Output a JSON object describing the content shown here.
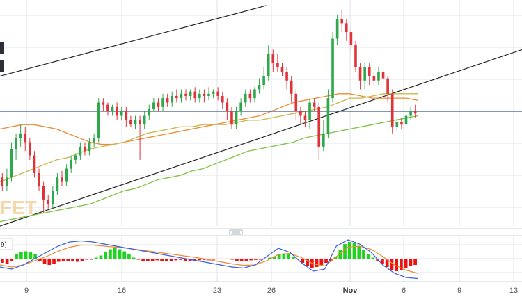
{
  "chart_data": {
    "type": "candlestick",
    "x_tick_labels": [
      "9",
      "16",
      "23",
      "26",
      "Nov",
      "6",
      "9",
      "13"
    ],
    "price_panel": {
      "ylim": [
        0,
        100
      ],
      "horizontal_line": 52,
      "candles": [
        [
          22,
          18,
          24,
          16
        ],
        [
          18,
          22,
          26,
          16
        ],
        [
          22,
          35,
          38,
          20
        ],
        [
          35,
          40,
          42,
          30
        ],
        [
          40,
          42,
          46,
          36
        ],
        [
          42,
          38,
          45,
          34
        ],
        [
          38,
          32,
          40,
          30
        ],
        [
          32,
          24,
          34,
          22
        ],
        [
          24,
          18,
          26,
          16
        ],
        [
          18,
          12,
          20,
          6
        ],
        [
          12,
          10,
          14,
          8
        ],
        [
          10,
          16,
          18,
          8
        ],
        [
          16,
          22,
          24,
          14
        ],
        [
          22,
          20,
          25,
          18
        ],
        [
          20,
          26,
          28,
          18
        ],
        [
          26,
          30,
          32,
          24
        ],
        [
          30,
          32,
          33,
          28
        ],
        [
          32,
          36,
          38,
          30
        ],
        [
          36,
          34,
          38,
          32
        ],
        [
          34,
          38,
          40,
          32
        ],
        [
          38,
          40,
          42,
          36
        ],
        [
          40,
          56,
          58,
          38
        ],
        [
          56,
          55,
          58,
          52
        ],
        [
          55,
          52,
          56,
          50
        ],
        [
          52,
          54,
          55,
          50
        ],
        [
          54,
          50,
          56,
          48
        ],
        [
          50,
          52,
          54,
          48
        ],
        [
          52,
          48,
          54,
          45
        ],
        [
          48,
          46,
          50,
          45
        ],
        [
          46,
          48,
          50,
          44
        ],
        [
          48,
          46,
          50,
          30
        ],
        [
          46,
          50,
          52,
          44
        ],
        [
          50,
          53,
          55,
          48
        ],
        [
          53,
          56,
          58,
          52
        ],
        [
          56,
          54,
          58,
          52
        ],
        [
          54,
          58,
          60,
          52
        ],
        [
          58,
          56,
          60,
          54
        ],
        [
          56,
          59,
          61,
          54
        ],
        [
          59,
          58,
          62,
          56
        ],
        [
          58,
          60,
          62,
          56
        ],
        [
          60,
          59,
          62,
          57
        ],
        [
          59,
          61,
          62,
          57
        ],
        [
          61,
          58,
          63,
          56
        ],
        [
          58,
          60,
          62,
          56
        ],
        [
          60,
          59,
          62,
          56
        ],
        [
          59,
          60,
          63,
          57
        ],
        [
          60,
          61,
          62,
          58
        ],
        [
          61,
          59,
          63,
          57
        ],
        [
          59,
          56,
          61,
          53
        ],
        [
          56,
          52,
          58,
          48
        ],
        [
          52,
          46,
          54,
          44
        ],
        [
          46,
          52,
          54,
          44
        ],
        [
          52,
          56,
          58,
          50
        ],
        [
          56,
          60,
          62,
          54
        ],
        [
          60,
          58,
          62,
          56
        ],
        [
          58,
          62,
          63,
          56
        ],
        [
          62,
          64,
          67,
          60
        ],
        [
          64,
          68,
          72,
          62
        ],
        [
          68,
          78,
          82,
          66
        ],
        [
          78,
          74,
          80,
          70
        ],
        [
          74,
          72,
          78,
          70
        ],
        [
          72,
          70,
          74,
          68
        ],
        [
          70,
          66,
          72,
          62
        ],
        [
          66,
          60,
          68,
          56
        ],
        [
          60,
          52,
          62,
          48
        ],
        [
          52,
          50,
          54,
          46
        ],
        [
          50,
          48,
          52,
          45
        ],
        [
          48,
          56,
          58,
          44
        ],
        [
          56,
          54,
          58,
          52
        ],
        [
          54,
          36,
          56,
          30
        ],
        [
          36,
          42,
          48,
          34
        ],
        [
          42,
          58,
          62,
          40
        ],
        [
          58,
          85,
          88,
          56
        ],
        [
          85,
          94,
          96,
          82
        ],
        [
          94,
          92,
          98,
          88
        ],
        [
          92,
          88,
          94,
          84
        ],
        [
          88,
          82,
          90,
          78
        ],
        [
          82,
          72,
          84,
          70
        ],
        [
          72,
          66,
          74,
          62
        ],
        [
          66,
          72,
          74,
          62
        ],
        [
          72,
          68,
          74,
          64
        ],
        [
          68,
          66,
          70,
          64
        ],
        [
          66,
          70,
          72,
          64
        ],
        [
          70,
          67,
          72,
          64
        ],
        [
          67,
          60,
          68,
          56
        ],
        [
          60,
          45,
          62,
          42
        ],
        [
          45,
          47,
          49,
          43
        ],
        [
          47,
          46,
          49,
          44
        ],
        [
          46,
          50,
          53,
          45
        ],
        [
          50,
          52,
          54,
          48
        ],
        [
          52,
          51,
          55,
          49
        ]
      ],
      "moving_averages": [
        {
          "color": "#f08a33",
          "values": [
            44,
            45,
            46,
            46,
            45,
            44,
            42,
            40,
            38,
            37,
            37,
            38,
            39,
            40,
            41,
            42,
            43,
            44,
            45,
            46,
            47,
            48,
            49,
            50,
            52,
            54,
            56,
            57,
            58,
            59,
            60,
            60,
            59,
            58,
            58,
            58,
            58,
            57
          ]
        },
        {
          "color": "#c9b84a",
          "values": [
            20,
            22,
            24,
            26,
            28,
            30,
            31,
            33,
            35,
            36,
            37,
            38,
            40,
            42,
            43,
            44,
            45,
            45,
            46,
            46,
            46,
            47,
            48,
            48,
            49,
            50,
            51,
            52,
            53,
            54,
            56,
            58,
            58,
            59,
            60,
            60,
            60,
            60
          ]
        },
        {
          "color": "#7cc442",
          "values": [
            2,
            3,
            4,
            5,
            6,
            7,
            8,
            9,
            10,
            12,
            14,
            16,
            17,
            19,
            21,
            22,
            23,
            25,
            26,
            28,
            30,
            32,
            34,
            35,
            36,
            37,
            38,
            40,
            41,
            42,
            43,
            44,
            45,
            46,
            47,
            48,
            49,
            50
          ]
        }
      ],
      "trendlines": [
        {
          "color": "#222222",
          "points": [
            [
              0,
              68
            ],
            [
              51,
              100
            ]
          ]
        },
        {
          "color": "#222222",
          "points": [
            [
              0,
              0
            ],
            [
              100,
              80
            ]
          ]
        }
      ]
    },
    "indicator_panel": {
      "label_fragment": "9)",
      "ylim": [
        -1,
        1
      ],
      "histogram": [
        -0.2,
        -0.25,
        -0.1,
        0.2,
        0.3,
        0.35,
        0.3,
        0.2,
        -0.1,
        -0.25,
        -0.3,
        -0.25,
        -0.15,
        -0.1,
        -0.1,
        -0.12,
        -0.15,
        -0.1,
        -0.05,
        -0.05,
        0.05,
        0.15,
        0.3,
        0.45,
        0.5,
        0.45,
        0.35,
        0.2,
        0.05,
        -0.05,
        -0.1,
        -0.12,
        -0.1,
        -0.08,
        -0.1,
        -0.12,
        -0.1,
        -0.08,
        -0.06,
        -0.1,
        -0.12,
        -0.1,
        -0.08,
        -0.06,
        -0.08,
        -0.05,
        -0.03,
        -0.02,
        -0.02,
        -0.05,
        -0.1,
        -0.12,
        -0.1,
        -0.08,
        -0.06,
        -0.05,
        -0.02,
        0.05,
        0.1,
        0.2,
        0.25,
        0.2,
        0.1,
        0.0,
        -0.2,
        -0.35,
        -0.45,
        -0.4,
        -0.3,
        -0.2,
        -0.1,
        0.1,
        0.4,
        0.7,
        0.8,
        0.75,
        0.6,
        0.4,
        0.2,
        0.05,
        -0.1,
        -0.25,
        -0.4,
        -0.55,
        -0.6,
        -0.55,
        -0.45,
        -0.35,
        -0.3
      ],
      "macd_line": {
        "color": "#3a5fe0",
        "values": [
          -0.4,
          -0.5,
          -0.3,
          0.0,
          0.3,
          0.6,
          0.8,
          0.85,
          0.8,
          0.7,
          0.6,
          0.5,
          0.4,
          0.3,
          0.2,
          0.1,
          0.0,
          -0.1,
          -0.2,
          -0.3,
          -0.4,
          -0.45,
          -0.3,
          0.1,
          0.5,
          0.3,
          -0.2,
          -0.6,
          -0.5,
          0.6,
          0.9,
          0.7,
          0.3,
          -0.3,
          -0.7,
          -0.9,
          -0.95
        ]
      },
      "signal_line": {
        "color": "#f08a33",
        "values": [
          -0.3,
          -0.4,
          -0.3,
          -0.1,
          0.1,
          0.35,
          0.55,
          0.65,
          0.65,
          0.6,
          0.55,
          0.5,
          0.42,
          0.35,
          0.27,
          0.2,
          0.12,
          0.05,
          -0.05,
          -0.15,
          -0.25,
          -0.32,
          -0.3,
          -0.1,
          0.2,
          0.25,
          0.05,
          -0.25,
          -0.35,
          0.1,
          0.55,
          0.6,
          0.45,
          0.1,
          -0.3,
          -0.55,
          -0.7
        ]
      }
    }
  },
  "colors": {
    "up": "#2ea84a",
    "down": "#e0343a",
    "grid": "#dfe3e8",
    "hline": "#3d5a80",
    "hist_up": "#1fd41f",
    "hist_down": "#ee1111"
  },
  "overlay": {
    "watermark": "FET",
    "left_badge_icon": "dark-price-badge"
  }
}
